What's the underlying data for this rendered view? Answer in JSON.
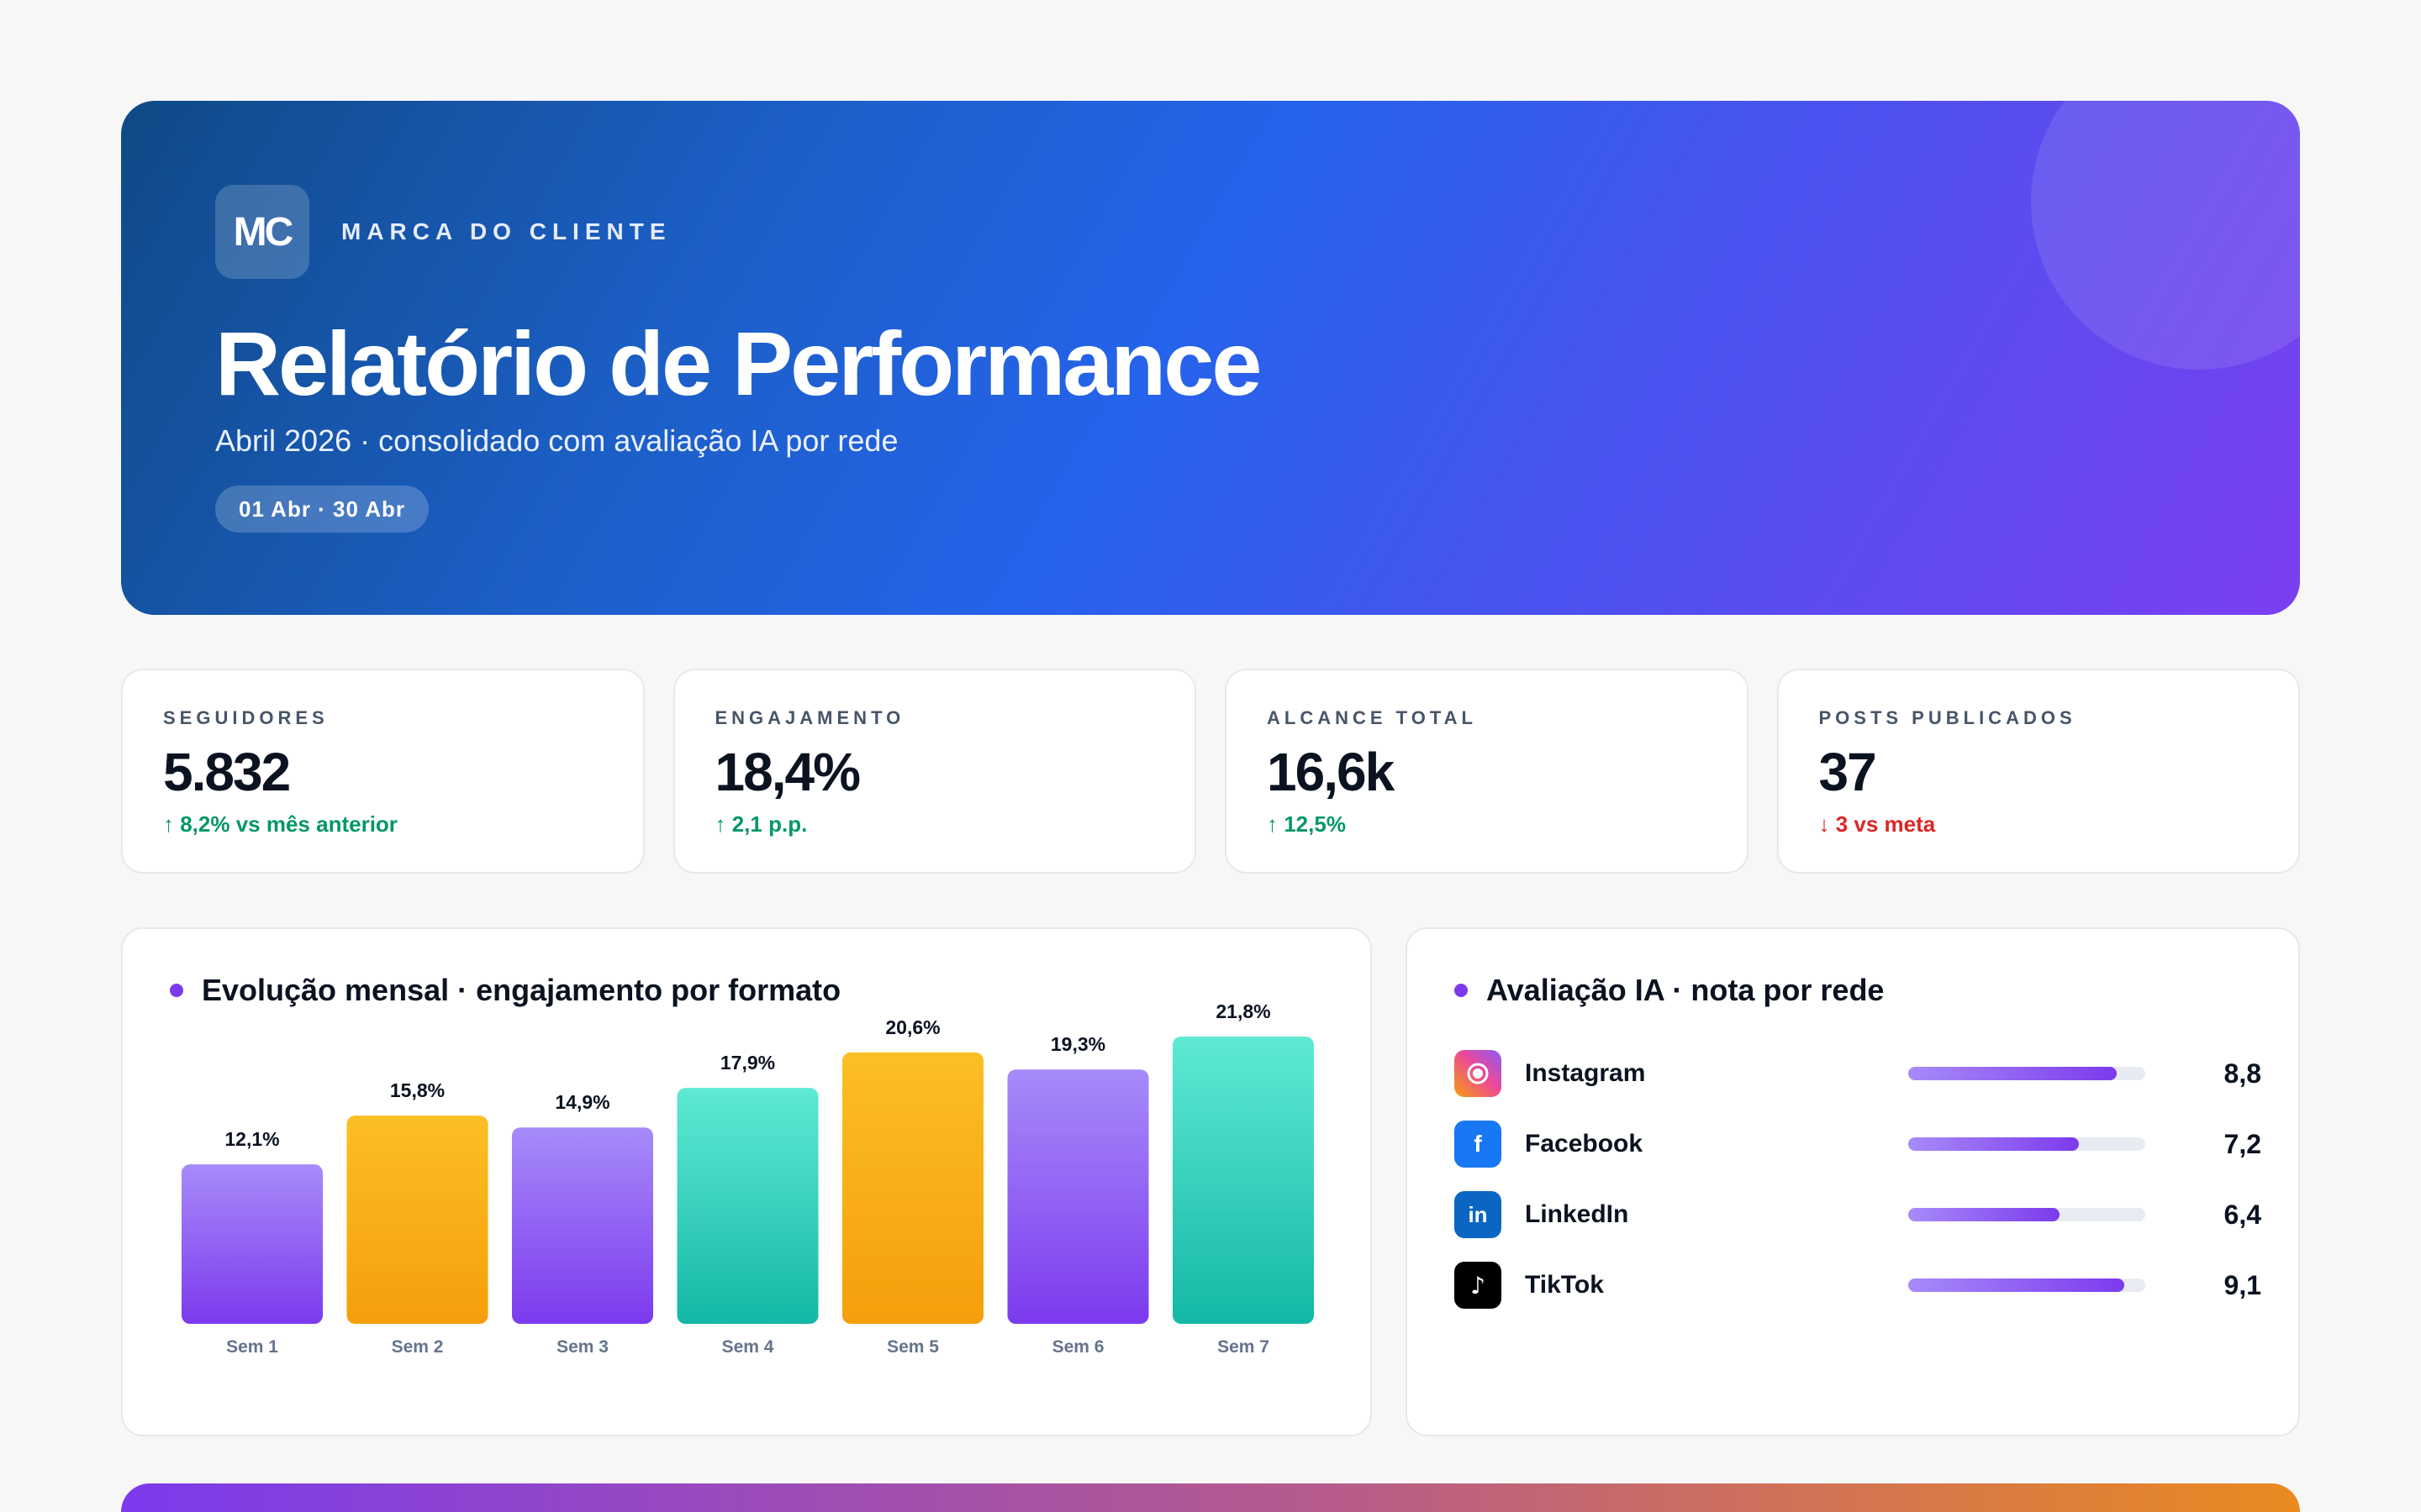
{
  "hero": {
    "logo_text": "MC",
    "brand_name": "MARCA DO CLIENTE",
    "title": "Relatório de Performance",
    "subtitle": "Abril 2026 · consolidado com avaliação IA por rede",
    "period": "01 Abr · 30 Abr"
  },
  "kpis": [
    {
      "label": "SEGUIDORES",
      "value": "5.832",
      "delta": "↑ 8,2% vs mês anterior",
      "trend": "up"
    },
    {
      "label": "ENGAJAMENTO",
      "value": "18,4%",
      "delta": "↑ 2,1 p.p.",
      "trend": "up"
    },
    {
      "label": "ALCANCE TOTAL",
      "value": "16,6k",
      "delta": "↑ 12,5%",
      "trend": "up"
    },
    {
      "label": "POSTS PUBLICADOS",
      "value": "37",
      "delta": "↓ 3 vs meta",
      "trend": "down"
    }
  ],
  "chart_panel": {
    "title": "Evolução mensal · engajamento por formato"
  },
  "chart_data": {
    "type": "bar",
    "categories": [
      "Sem 1",
      "Sem 2",
      "Sem 3",
      "Sem 4",
      "Sem 5",
      "Sem 6",
      "Sem 7"
    ],
    "values": [
      12.1,
      15.8,
      14.9,
      17.9,
      20.6,
      19.3,
      21.8
    ],
    "labels": [
      "12,1%",
      "15,8%",
      "14,9%",
      "17,9%",
      "20,6%",
      "19,3%",
      "21,8%"
    ],
    "bar_colors": [
      "purple",
      "amber",
      "purple",
      "teal",
      "amber",
      "purple",
      "teal"
    ],
    "palette": {
      "purple": [
        "#a78bfa",
        "#7c3aed"
      ],
      "amber": [
        "#fbbf24",
        "#f59e0b"
      ],
      "teal": [
        "#5eead4",
        "#14b8a6"
      ]
    },
    "title": "Evolução mensal · engajamento por formato",
    "xlabel": "",
    "ylabel": "",
    "grid": false
  },
  "ai_panel": {
    "title": "Avaliação IA · nota por rede",
    "max_score": 10,
    "networks": [
      {
        "name": "Instagram",
        "score": 8.8,
        "score_label": "8,8",
        "icon": "instagram-icon"
      },
      {
        "name": "Facebook",
        "score": 7.2,
        "score_label": "7,2",
        "icon": "facebook-icon"
      },
      {
        "name": "LinkedIn",
        "score": 6.4,
        "score_label": "6,4",
        "icon": "linkedin-icon"
      },
      {
        "name": "TikTok",
        "score": 9.1,
        "score_label": "9,1",
        "icon": "tiktok-icon"
      }
    ]
  },
  "colors": {
    "accent": "#7c3aed",
    "positive": "#059669",
    "negative": "#dc2626",
    "hero_gradient": [
      "#0f4a86",
      "#2563eb",
      "#7b3ff0"
    ]
  }
}
